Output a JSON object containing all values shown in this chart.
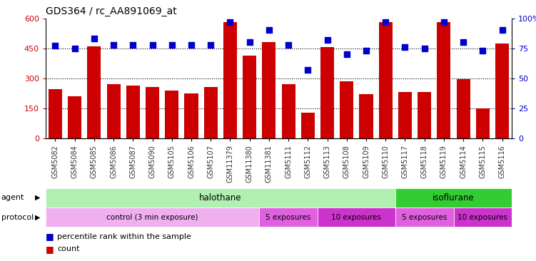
{
  "title": "GDS364 / rc_AA891069_at",
  "samples": [
    "GSM5082",
    "GSM5084",
    "GSM5085",
    "GSM5086",
    "GSM5087",
    "GSM5090",
    "GSM5105",
    "GSM5106",
    "GSM5107",
    "GSM11379",
    "GSM11380",
    "GSM11381",
    "GSM5111",
    "GSM5112",
    "GSM5113",
    "GSM5108",
    "GSM5109",
    "GSM5110",
    "GSM5117",
    "GSM5118",
    "GSM5119",
    "GSM5114",
    "GSM5115",
    "GSM5116"
  ],
  "counts": [
    245,
    210,
    460,
    270,
    265,
    255,
    240,
    225,
    255,
    580,
    415,
    480,
    270,
    130,
    455,
    285,
    220,
    580,
    230,
    230,
    580,
    295,
    150,
    475
  ],
  "percentiles": [
    77,
    75,
    83,
    78,
    78,
    78,
    78,
    78,
    78,
    97,
    80,
    90,
    78,
    57,
    82,
    70,
    73,
    97,
    76,
    75,
    97,
    80,
    73,
    90
  ],
  "ylim_left": [
    0,
    600
  ],
  "ylim_right": [
    0,
    100
  ],
  "yticks_left": [
    0,
    150,
    300,
    450,
    600
  ],
  "yticks_right": [
    0,
    25,
    50,
    75,
    100
  ],
  "bar_color": "#cc0000",
  "dot_color": "#0000cc",
  "agent_groups": [
    {
      "label": "halothane",
      "start": 0,
      "end": 18,
      "color": "#b0f0b0"
    },
    {
      "label": "isoflurane",
      "start": 18,
      "end": 24,
      "color": "#33cc33"
    }
  ],
  "protocol_groups": [
    {
      "label": "control (3 min exposure)",
      "start": 0,
      "end": 11,
      "color": "#f0b0f0"
    },
    {
      "label": "5 exposures",
      "start": 11,
      "end": 14,
      "color": "#e060e0"
    },
    {
      "label": "10 exposures",
      "start": 14,
      "end": 18,
      "color": "#cc33cc"
    },
    {
      "label": "5 exposures",
      "start": 18,
      "end": 21,
      "color": "#e060e0"
    },
    {
      "label": "10 exposures",
      "start": 21,
      "end": 24,
      "color": "#cc33cc"
    }
  ],
  "legend_count_label": "count",
  "legend_pct_label": "percentile rank within the sample",
  "bg_color": "#ffffff",
  "chart_bg": "#ffffff",
  "gridline_color": "#000000"
}
